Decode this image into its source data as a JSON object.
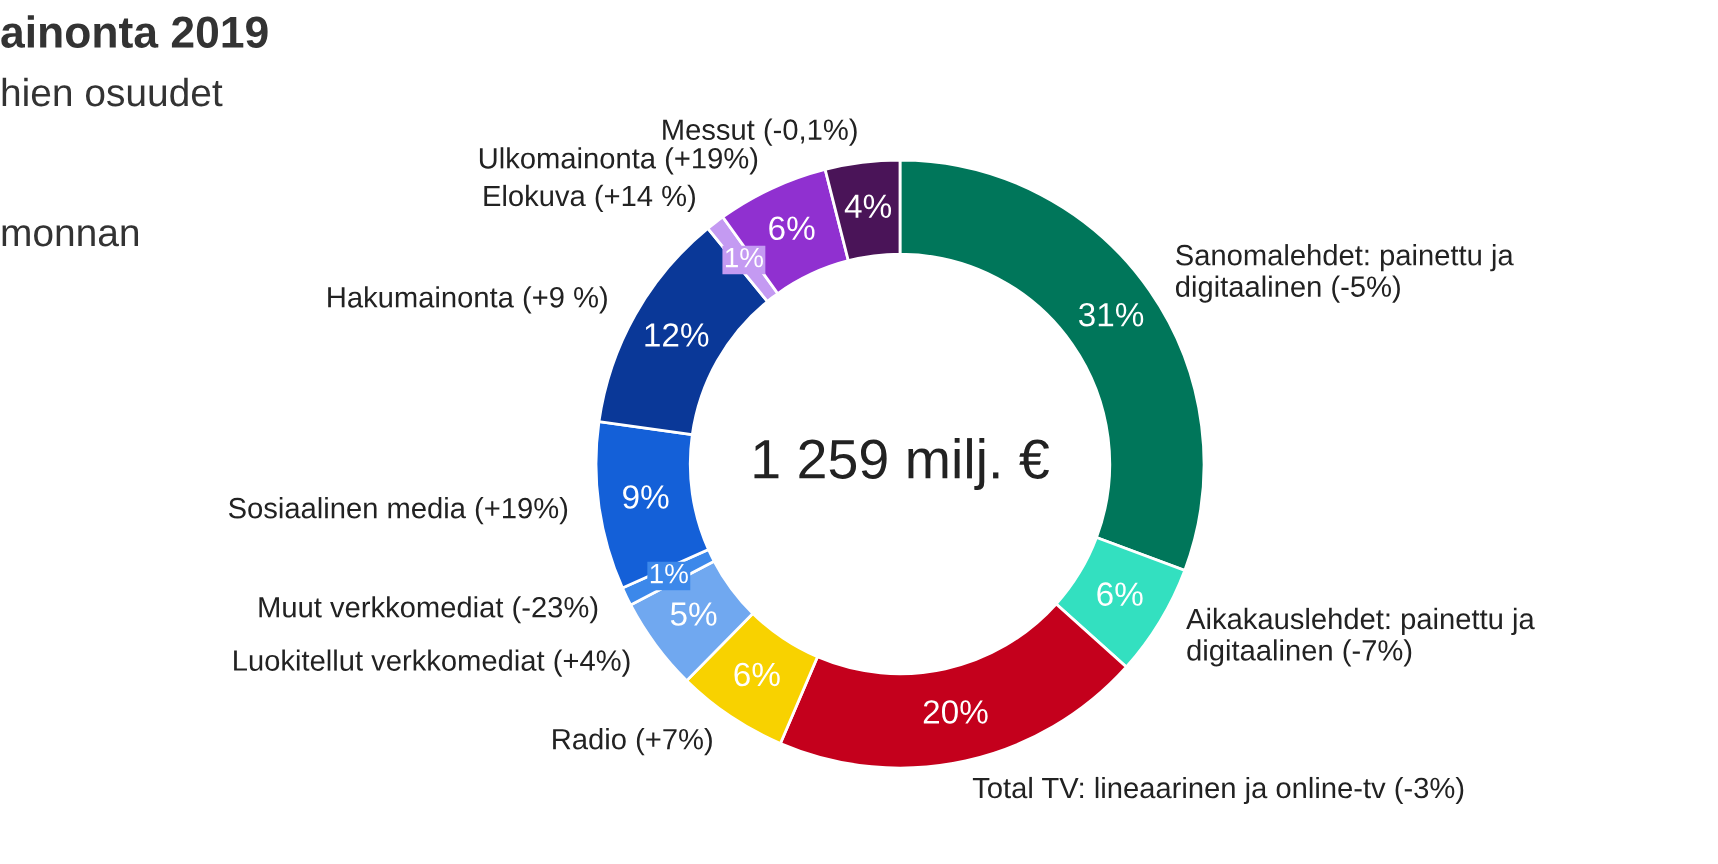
{
  "chart_data": {
    "type": "donut",
    "title": "ainonta 2019",
    "subtitle": "hien osuudet",
    "annotations": [
      "monnan",
      "1 259 milj. €"
    ],
    "categories": [
      "Sanomalehdet: painettu ja\ndigitaalinen (-5%)",
      "Aikakauslehdet: painettu ja\ndigitaalinen (-7%)",
      "Total TV: lineaarinen ja online-tv (-3%)",
      "Radio (+7%)",
      "Luokitellut verkkomediat (+4%)",
      "Muut verkkomediat (-23%)",
      "Sosiaalinen media (+19%)",
      "Hakumainonta (+9 %)",
      "Elokuva (+14 %)",
      "Ulkomainonta (+19%)",
      "Messut (-0,1%)"
    ],
    "values": [
      31,
      6,
      20,
      6,
      5,
      1,
      9,
      12,
      1,
      6,
      4
    ],
    "colors": [
      "#00765a",
      "#33e0c0",
      "#c4001c",
      "#f8d200",
      "#70a8f0",
      "#3c88ea",
      "#1460d8",
      "#0a3898",
      "#c49af2",
      "#9030d0",
      "#4a1458"
    ],
    "value_labels": [
      "31%",
      "6%",
      "20%",
      "6%",
      "5%",
      "1%",
      "9%",
      "12%",
      "1%",
      "6%",
      "4%"
    ],
    "legend": false
  }
}
